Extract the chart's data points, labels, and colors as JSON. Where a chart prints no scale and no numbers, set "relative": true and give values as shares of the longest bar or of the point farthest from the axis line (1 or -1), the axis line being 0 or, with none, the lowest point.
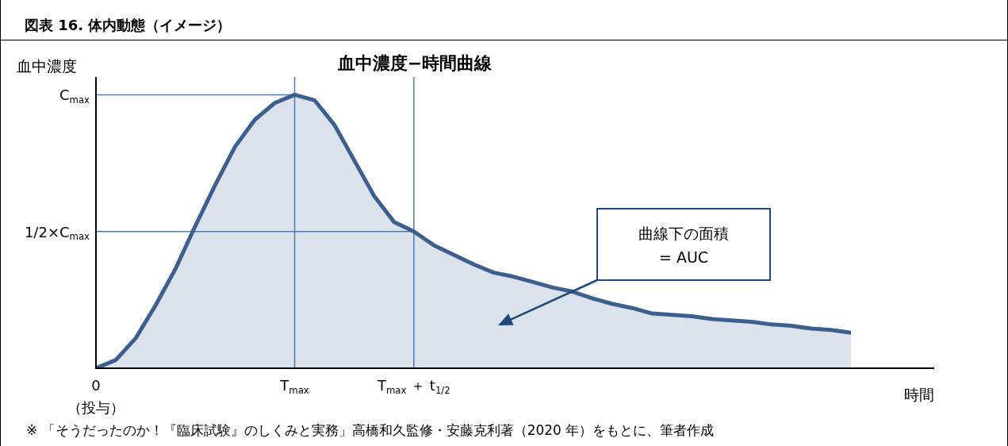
{
  "chart_data": {
    "type": "area",
    "relative": true,
    "title": "図表 16. 体内動態（イメージ）",
    "subtitle": "血中濃度−時間曲線",
    "xlabel": "時間",
    "ylabel": "血中濃度",
    "categories": [
      "0\n（投与）",
      null,
      null,
      null,
      null,
      null,
      null,
      null,
      null,
      null,
      "T$_{max}$",
      null,
      null,
      null,
      null,
      null,
      "T$_{max}$ ＋ t$_{1/2}$",
      null,
      null,
      null,
      null,
      null,
      null,
      null,
      null,
      null,
      null,
      null,
      null,
      null,
      null,
      null,
      null,
      null,
      null,
      null,
      null,
      null,
      null
    ],
    "series": [
      {
        "color": "#3c5f8f",
        "values": [
          0,
          0.03,
          0.11,
          0.23,
          0.363,
          0.52,
          0.67,
          0.81,
          0.909,
          0.97,
          1,
          0.98,
          0.89,
          0.76,
          0.63,
          0.535,
          0.5,
          0.45,
          0.415,
          0.38,
          0.35,
          0.335,
          0.315,
          0.295,
          0.28,
          0.255,
          0.235,
          0.22,
          0.2,
          0.195,
          0.19,
          0.18,
          0.175,
          0.17,
          0.16,
          0.155,
          0.145,
          0.14,
          0.13
        ]
      }
    ],
    "ref_lines": [
      {
        "axis": "x",
        "value": "T$_{max}$",
        "color": "#4a7fc0"
      },
      {
        "axis": "x",
        "value": "T$_{max}$ ＋ t$_{1/2}$",
        "color": "#4a7fc0"
      },
      {
        "axis": "y",
        "value": 1,
        "label": "C$_{max}$",
        "color": "#4a7fc0"
      },
      {
        "axis": "y",
        "value": 0.5,
        "label": "1/2×C$_{max}$",
        "color": "#4a7fc0"
      }
    ],
    "annotations": [
      "曲線下の面積\n= AUC",
      "※ 「そうだったのか！『臨床試験』のしくみと実務」高橋和久監修・安藤克利著（2020 年）をもとに、筆者作成"
    ],
    "grid": false,
    "legend": false
  }
}
